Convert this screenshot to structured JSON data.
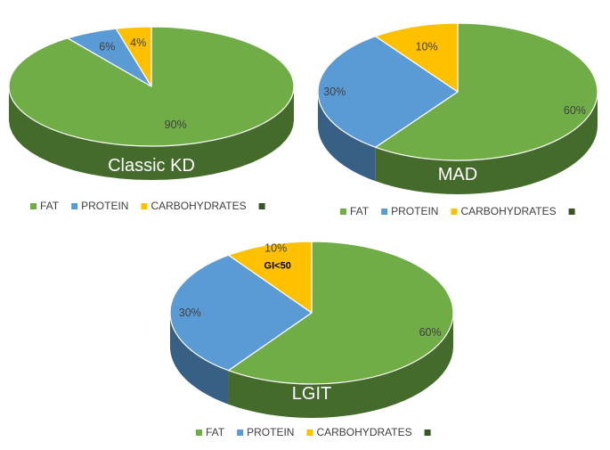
{
  "colors": {
    "fat": "#70ad47",
    "protein": "#5b9bd5",
    "carbohydrates": "#ffc000",
    "fourth": "#375623"
  },
  "chart_data": [
    {
      "type": "pie",
      "title": "Classic KD",
      "categories": [
        "FAT",
        "PROTEIN",
        "CARBOHYDRATES",
        ""
      ],
      "values": [
        90,
        6,
        4,
        0
      ],
      "labels": [
        "90%",
        "6%",
        "4%"
      ],
      "annotation": "",
      "legend": "bottom",
      "style": "3d"
    },
    {
      "type": "pie",
      "title": "MAD",
      "categories": [
        "FAT",
        "PROTEIN",
        "CARBOHYDRATES",
        ""
      ],
      "values": [
        60,
        30,
        10,
        0
      ],
      "labels": [
        "60%",
        "30%",
        "10%"
      ],
      "annotation": "",
      "legend": "bottom",
      "style": "3d"
    },
    {
      "type": "pie",
      "title": "LGIT",
      "categories": [
        "FAT",
        "PROTEIN",
        "CARBOHYDRATES",
        ""
      ],
      "values": [
        60,
        30,
        10,
        0
      ],
      "labels": [
        "60%",
        "30%",
        "10%"
      ],
      "annotation": "GI<50",
      "legend": "bottom",
      "style": "3d"
    }
  ]
}
